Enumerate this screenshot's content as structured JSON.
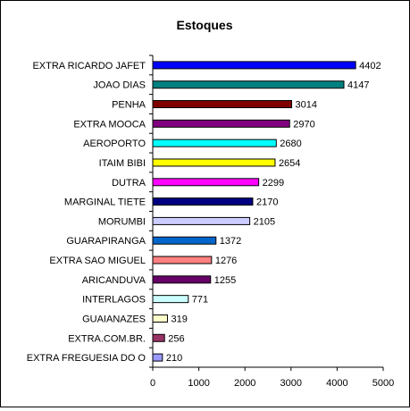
{
  "chart_data": {
    "type": "bar",
    "orientation": "horizontal",
    "title": "Estoques",
    "categories": [
      "EXTRA RICARDO JAFET",
      "JOAO DIAS",
      "PENHA",
      "EXTRA MOOCA",
      "AEROPORTO",
      "ITAIM BIBI",
      "DUTRA",
      "MARGINAL TIETE",
      "MORUMBI",
      "GUARAPIRANGA",
      "EXTRA SAO MIGUEL",
      "ARICANDUVA",
      "INTERLAGOS",
      "GUAIANAZES",
      "EXTRA.COM.BR.",
      "EXTRA FREGUESIA DO O"
    ],
    "values": [
      4402,
      4147,
      3014,
      2970,
      2680,
      2654,
      2299,
      2170,
      2105,
      1372,
      1276,
      1255,
      771,
      319,
      256,
      210
    ],
    "colors": [
      "#0000ff",
      "#008080",
      "#800000",
      "#800080",
      "#00ffff",
      "#ffff00",
      "#ff00ff",
      "#000080",
      "#ccccff",
      "#0066cc",
      "#ff8080",
      "#660066",
      "#ccffff",
      "#ffffcc",
      "#993366",
      "#9999ff"
    ],
    "xlim": [
      0,
      5000
    ],
    "xticks": [
      0,
      1000,
      2000,
      3000,
      4000,
      5000
    ],
    "xlabel": "",
    "ylabel": "",
    "grid": false,
    "legend": "none",
    "data_labels": true
  }
}
